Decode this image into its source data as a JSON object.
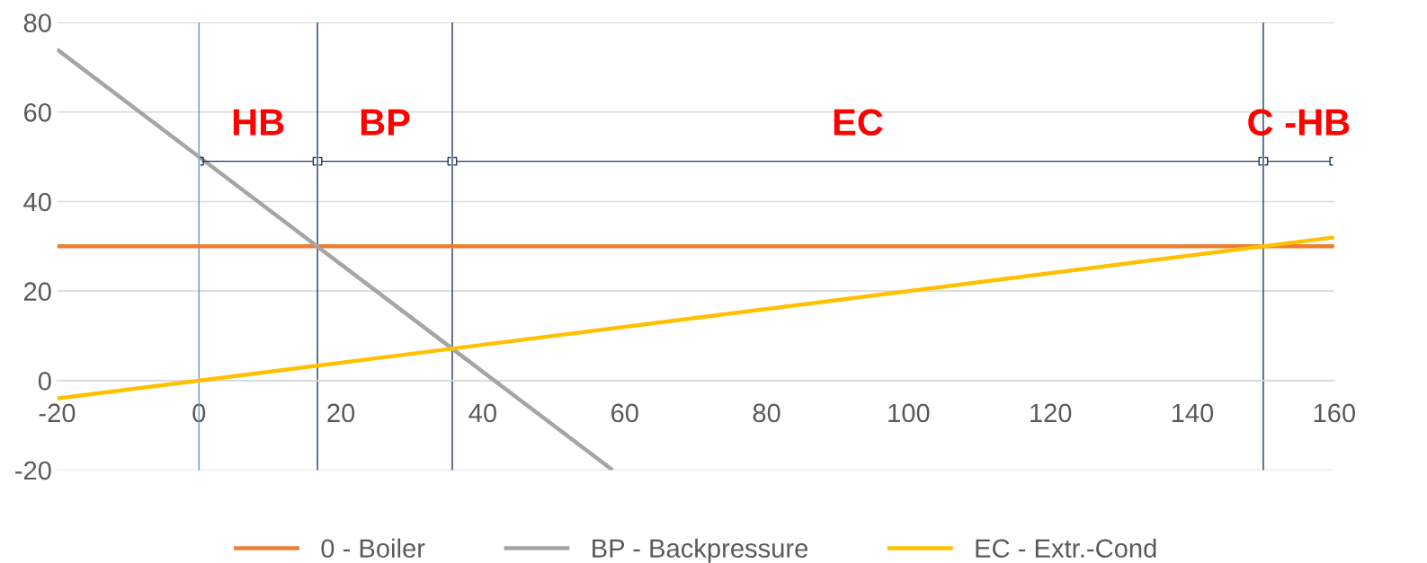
{
  "chart_data": {
    "type": "line",
    "series": [
      {
        "name": "0 - Boiler",
        "color": "#ed7d31",
        "x": [
          -20,
          160
        ],
        "values": [
          30,
          30
        ]
      },
      {
        "name": "BP - Backpressure",
        "color": "#a5a5a5",
        "x": [
          -20,
          58.3
        ],
        "values": [
          74,
          -20
        ]
      },
      {
        "name": "EC - Extr.-Cond",
        "color": "#ffc000",
        "x": [
          -20,
          160
        ],
        "values": [
          -4,
          32
        ]
      }
    ],
    "xlim": [
      -20,
      160
    ],
    "xticks": [
      -20,
      0,
      20,
      40,
      60,
      80,
      100,
      120,
      140,
      160
    ],
    "ylim": [
      -20,
      80
    ],
    "yticks": [
      -20,
      0,
      20,
      40,
      60,
      80
    ],
    "grid": "y",
    "legend": "bottom",
    "marker": "none",
    "line_style": "solid",
    "ref_lines": [
      {
        "axis": "x",
        "value": 0,
        "color": "#5b9bd5"
      },
      {
        "axis": "x",
        "value": 16.7,
        "color": "#1f3864"
      },
      {
        "axis": "x",
        "value": 35.7,
        "color": "#1f3864"
      },
      {
        "axis": "x",
        "value": 150,
        "color": "#1f3864"
      }
    ],
    "annotations": [
      "HB",
      "BP",
      "EC",
      "C -HB"
    ]
  }
}
